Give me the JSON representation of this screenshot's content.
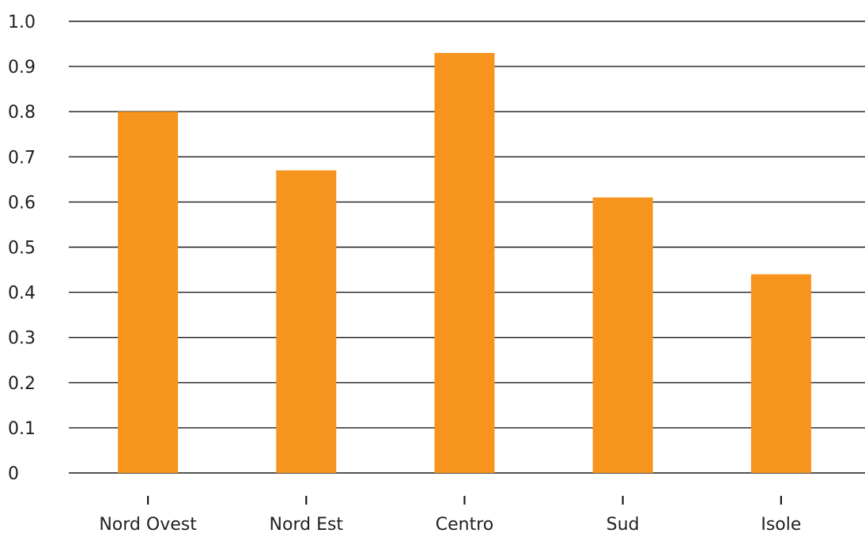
{
  "chart_data": {
    "type": "bar",
    "categories": [
      "Nord Ovest",
      "Nord Est",
      "Centro",
      "Sud",
      "Isole"
    ],
    "values": [
      0.8,
      0.67,
      0.93,
      0.61,
      0.44
    ],
    "title": "",
    "xlabel": "",
    "ylabel": "",
    "ylim": [
      0,
      1.0
    ],
    "yticks": [
      "0",
      "0.1",
      "0.2",
      "0.3",
      "0.4",
      "0.5",
      "0.6",
      "0.7",
      "0.8",
      "0.9",
      "1.0"
    ],
    "bar_color": "#F7941D",
    "grid": true,
    "legend": "none"
  }
}
